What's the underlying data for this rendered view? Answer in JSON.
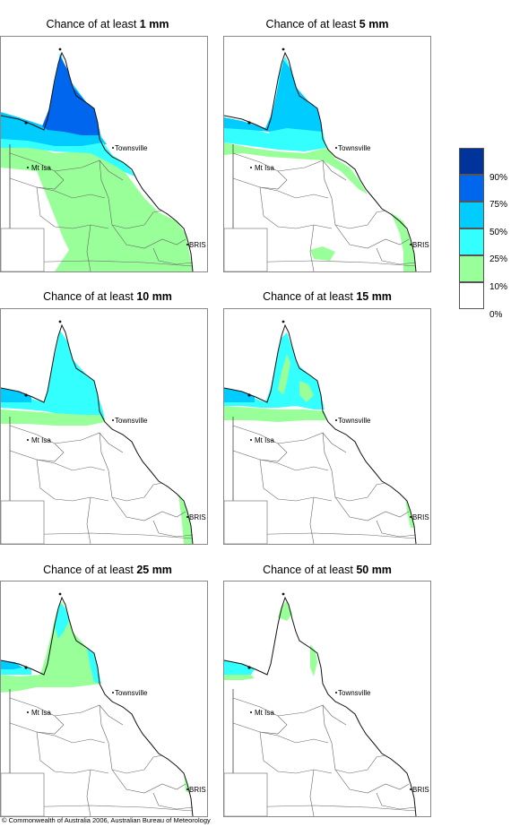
{
  "panels": [
    {
      "title_prefix": "Chance of at least",
      "amount": "1 mm"
    },
    {
      "title_prefix": "Chance of at least",
      "amount": "5 mm"
    },
    {
      "title_prefix": "Chance of at least",
      "amount": "10 mm"
    },
    {
      "title_prefix": "Chance of at least",
      "amount": "15 mm"
    },
    {
      "title_prefix": "Chance of at least",
      "amount": "25 mm"
    },
    {
      "title_prefix": "Chance of at least",
      "amount": "50 mm"
    }
  ],
  "places": {
    "townsville": "Townsville",
    "mt_isa": "Mt Isa",
    "brisbane": "BRIS"
  },
  "legend": {
    "labels": [
      "90%",
      "75%",
      "50%",
      "25%",
      "10%",
      "0%"
    ],
    "colors": [
      "#00349a",
      "#0066ee",
      "#00ccff",
      "#33ffff",
      "#99ff99",
      "#ffffff"
    ]
  },
  "copyright": "© Commonwealth of Australia 2006, Australian Bureau of Meteorology"
}
